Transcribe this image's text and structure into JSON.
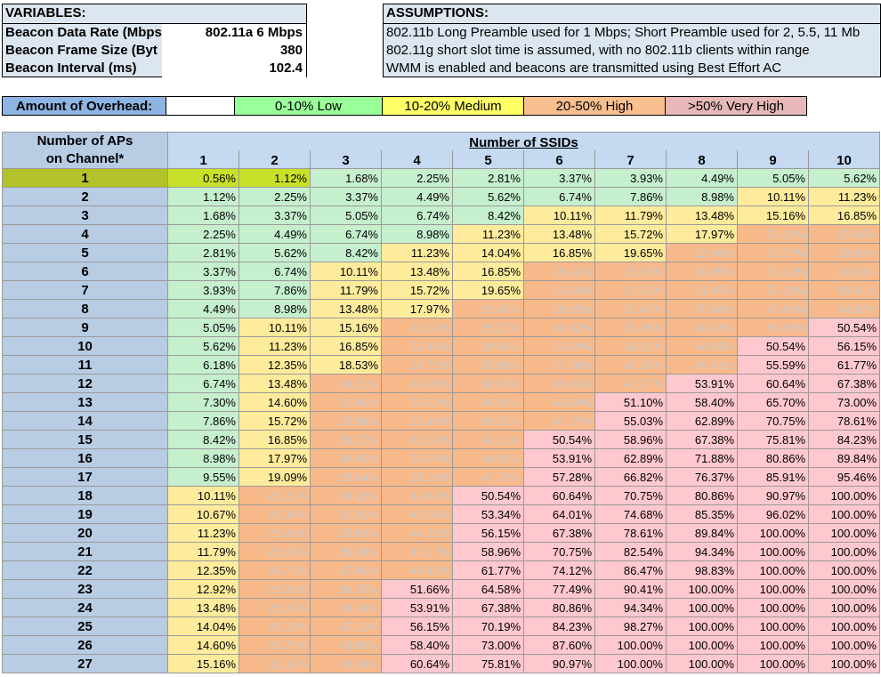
{
  "variables": {
    "header": "VARIABLES:",
    "rows": [
      {
        "label": "Beacon Data Rate (Mbps",
        "value": "802.11a 6 Mbps"
      },
      {
        "label": "Beacon Frame Size (Byt",
        "value": "380"
      },
      {
        "label": "Beacon Interval (ms)",
        "value": "102.4"
      }
    ]
  },
  "assumptions": {
    "header": "ASSUMPTIONS:",
    "lines": [
      "802.11b Long Preamble used for 1 Mbps; Short Preamble used for 2, 5.5, 11 Mb",
      "802.11g short slot time is assumed, with no 802.11b clients within range",
      "WMM is enabled and beacons are transmitted using Best Effort AC"
    ]
  },
  "legend": {
    "title": "Amount of Overhead:",
    "low": "0-10% Low",
    "medium": "10-20% Medium",
    "high": "20-50% High",
    "very_high": ">50% Very High",
    "colors": {
      "low": "#99ff99",
      "medium": "#ffff66",
      "high": "#fabf8f",
      "very_high": "#e6b8b7"
    }
  },
  "table": {
    "row_header_line1": "Number of APs",
    "row_header_line2": "on Channel*",
    "column_group_title": "Number of SSIDs",
    "columns": [
      "1",
      "2",
      "3",
      "4",
      "5",
      "6",
      "7",
      "8",
      "9",
      "10"
    ],
    "rows": [
      {
        "ap": "1",
        "values": [
          "0.56%",
          "1.12%",
          "1.68%",
          "2.25%",
          "2.81%",
          "3.37%",
          "3.93%",
          "4.49%",
          "5.05%",
          "5.62%"
        ]
      },
      {
        "ap": "2",
        "values": [
          "1.12%",
          "2.25%",
          "3.37%",
          "4.49%",
          "5.62%",
          "6.74%",
          "7.86%",
          "8.98%",
          "10.11%",
          "11.23%"
        ]
      },
      {
        "ap": "3",
        "values": [
          "1.68%",
          "3.37%",
          "5.05%",
          "6.74%",
          "8.42%",
          "10.11%",
          "11.79%",
          "13.48%",
          "15.16%",
          "16.85%"
        ]
      },
      {
        "ap": "4",
        "values": [
          "2.25%",
          "4.49%",
          "6.74%",
          "8.98%",
          "11.23%",
          "13.48%",
          "15.72%",
          "17.97%",
          "20.21%",
          "22.46%"
        ]
      },
      {
        "ap": "5",
        "values": [
          "2.81%",
          "5.62%",
          "8.42%",
          "11.23%",
          "14.04%",
          "16.85%",
          "19.65%",
          "22.46%",
          "25.27%",
          "28.08%"
        ]
      },
      {
        "ap": "6",
        "values": [
          "3.37%",
          "6.74%",
          "10.11%",
          "13.48%",
          "16.85%",
          "20.21%",
          "23.58%",
          "26.95%",
          "30.32%",
          "33.69%"
        ]
      },
      {
        "ap": "7",
        "values": [
          "3.93%",
          "7.86%",
          "11.79%",
          "15.72%",
          "19.65%",
          "23.58%",
          "27.51%",
          "31.45%",
          "35.38%",
          "39.31%"
        ]
      },
      {
        "ap": "8",
        "values": [
          "4.49%",
          "8.98%",
          "13.48%",
          "17.97%",
          "22.46%",
          "26.95%",
          "31.45%",
          "35.94%",
          "40.43%",
          "44.92%"
        ]
      },
      {
        "ap": "9",
        "values": [
          "5.05%",
          "10.11%",
          "15.16%",
          "20.21%",
          "25.27%",
          "30.32%",
          "35.38%",
          "40.43%",
          "45.48%",
          "50.54%"
        ]
      },
      {
        "ap": "10",
        "values": [
          "5.62%",
          "11.23%",
          "16.85%",
          "22.46%",
          "28.08%",
          "33.69%",
          "39.31%",
          "44.92%",
          "50.54%",
          "56.15%"
        ]
      },
      {
        "ap": "11",
        "values": [
          "6.18%",
          "12.35%",
          "18.53%",
          "24.71%",
          "30.88%",
          "37.06%",
          "43.24%",
          "49.41%",
          "55.59%",
          "61.77%"
        ]
      },
      {
        "ap": "12",
        "values": [
          "6.74%",
          "13.48%",
          "20.21%",
          "26.95%",
          "33.69%",
          "40.43%",
          "47.17%",
          "53.91%",
          "60.64%",
          "67.38%"
        ]
      },
      {
        "ap": "13",
        "values": [
          "7.30%",
          "14.60%",
          "21.90%",
          "29.20%",
          "36.50%",
          "43.80%",
          "51.10%",
          "58.40%",
          "65.70%",
          "73.00%"
        ]
      },
      {
        "ap": "14",
        "values": [
          "7.86%",
          "15.72%",
          "23.58%",
          "31.45%",
          "39.31%",
          "47.17%",
          "55.03%",
          "62.89%",
          "70.75%",
          "78.61%"
        ]
      },
      {
        "ap": "15",
        "values": [
          "8.42%",
          "16.85%",
          "25.27%",
          "33.69%",
          "42.11%",
          "50.54%",
          "58.96%",
          "67.38%",
          "75.81%",
          "84.23%"
        ]
      },
      {
        "ap": "16",
        "values": [
          "8.98%",
          "17.97%",
          "26.95%",
          "35.94%",
          "44.92%",
          "53.91%",
          "62.89%",
          "71.88%",
          "80.86%",
          "89.84%"
        ]
      },
      {
        "ap": "17",
        "values": [
          "9.55%",
          "19.09%",
          "28.64%",
          "38.18%",
          "47.73%",
          "57.28%",
          "66.82%",
          "76.37%",
          "85.91%",
          "95.46%"
        ]
      },
      {
        "ap": "18",
        "values": [
          "10.11%",
          "20.21%",
          "30.32%",
          "40.43%",
          "50.54%",
          "60.64%",
          "70.75%",
          "80.86%",
          "90.97%",
          "100.00%"
        ]
      },
      {
        "ap": "19",
        "values": [
          "10.67%",
          "21.34%",
          "32.01%",
          "42.68%",
          "53.34%",
          "64.01%",
          "74.68%",
          "85.35%",
          "96.02%",
          "100.00%"
        ]
      },
      {
        "ap": "20",
        "values": [
          "11.23%",
          "22.46%",
          "33.69%",
          "44.92%",
          "56.15%",
          "67.38%",
          "78.61%",
          "89.84%",
          "100.00%",
          "100.00%"
        ]
      },
      {
        "ap": "21",
        "values": [
          "11.79%",
          "23.58%",
          "35.38%",
          "47.17%",
          "58.96%",
          "70.75%",
          "82.54%",
          "94.34%",
          "100.00%",
          "100.00%"
        ]
      },
      {
        "ap": "22",
        "values": [
          "12.35%",
          "24.71%",
          "37.06%",
          "49.41%",
          "61.77%",
          "74.12%",
          "86.47%",
          "98.83%",
          "100.00%",
          "100.00%"
        ]
      },
      {
        "ap": "23",
        "values": [
          "12.92%",
          "25.83%",
          "38.75%",
          "51.66%",
          "64.58%",
          "77.49%",
          "90.41%",
          "100.00%",
          "100.00%",
          "100.00%"
        ]
      },
      {
        "ap": "24",
        "values": [
          "13.48%",
          "26.95%",
          "40.43%",
          "53.91%",
          "67.38%",
          "80.86%",
          "94.34%",
          "100.00%",
          "100.00%",
          "100.00%"
        ]
      },
      {
        "ap": "25",
        "values": [
          "14.04%",
          "28.08%",
          "42.11%",
          "56.15%",
          "70.19%",
          "84.23%",
          "98.27%",
          "100.00%",
          "100.00%",
          "100.00%"
        ]
      },
      {
        "ap": "26",
        "values": [
          "14.60%",
          "29.20%",
          "43.80%",
          "58.40%",
          "73.00%",
          "87.60%",
          "100.00%",
          "100.00%",
          "100.00%",
          "100.00%"
        ]
      },
      {
        "ap": "27",
        "values": [
          "15.16%",
          "30.32%",
          "45.48%",
          "60.64%",
          "75.81%",
          "90.97%",
          "100.00%",
          "100.00%",
          "100.00%",
          "100.00%"
        ]
      }
    ]
  }
}
